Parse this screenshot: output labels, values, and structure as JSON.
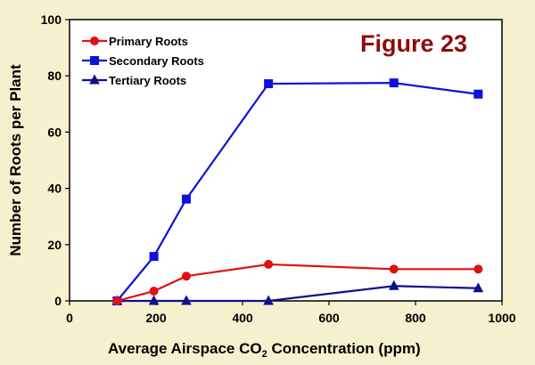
{
  "chart_data": {
    "type": "line",
    "annotation": "Figure 23",
    "xlabel_main": "Average  Airspace  CO",
    "xlabel_sub": "2",
    "xlabel_tail": " Concentration  (ppm)",
    "ylabel": "Number  of  Roots  per  Plant",
    "xlim": [
      0,
      1000
    ],
    "ylim": [
      0,
      100
    ],
    "xticks": [
      0,
      200,
      400,
      600,
      800,
      1000
    ],
    "yticks": [
      0,
      20,
      40,
      60,
      80,
      100
    ],
    "grid": false,
    "legend_position": "top-left",
    "series": [
      {
        "name": "Primary Roots",
        "color": "#e01010",
        "marker": "circle",
        "x": [
          110,
          195,
          270,
          460,
          750,
          945
        ],
        "y": [
          0,
          3.5,
          8.8,
          13,
          11.3,
          11.3
        ]
      },
      {
        "name": "Secondary Roots",
        "color": "#1010e0",
        "marker": "square",
        "x": [
          110,
          195,
          270,
          460,
          750,
          945
        ],
        "y": [
          0,
          15.8,
          36.2,
          77.2,
          77.5,
          73.5
        ]
      },
      {
        "name": "Tertiary Roots",
        "color": "#10108c",
        "marker": "triangle",
        "x": [
          110,
          195,
          270,
          460,
          750,
          945
        ],
        "y": [
          0,
          0,
          0,
          0,
          5.3,
          4.5
        ]
      }
    ]
  }
}
